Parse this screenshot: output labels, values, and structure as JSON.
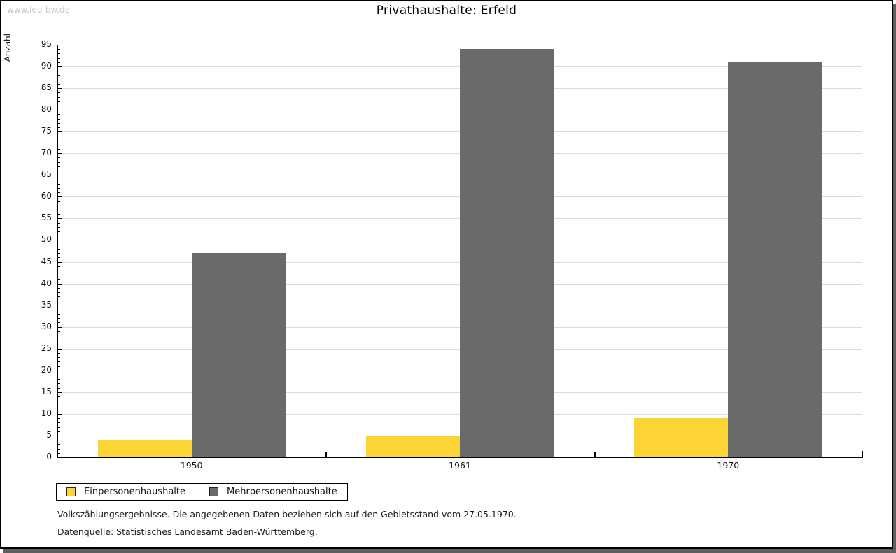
{
  "watermark": "www.leo-bw.de",
  "title": "Privathaushalte: Erfeld",
  "footnotes": {
    "line1": "Volkszählungsergebnisse. Die angegebenen Daten beziehen sich auf den Gebietsstand vom 27.05.1970.",
    "line2": "Datenquelle: Statistisches Landesamt Baden-Württemberg."
  },
  "colors": {
    "series_yellow": "#fcd435",
    "series_gray": "#6a6a6a",
    "gridline": "#dcdcdc",
    "frame_shadow": "#5f5f5f",
    "watermark": "#c9c9c9"
  },
  "chart_data": {
    "type": "bar",
    "title": "Privathaushalte: Erfeld",
    "categories": [
      "1950",
      "1961",
      "1970"
    ],
    "series": [
      {
        "name": "Einpersonenhaushalte",
        "color": "#fcd435",
        "values": [
          4,
          5,
          9
        ]
      },
      {
        "name": "Mehrpersonenhaushalte",
        "color": "#6a6a6a",
        "values": [
          47,
          94,
          91
        ]
      }
    ],
    "xlabel": "",
    "ylabel": "Anzahl",
    "ylim": [
      0,
      95
    ],
    "ytick_step": 5,
    "ytick_minor_step": 1,
    "grid": true,
    "legend_position": "bottom-left"
  }
}
